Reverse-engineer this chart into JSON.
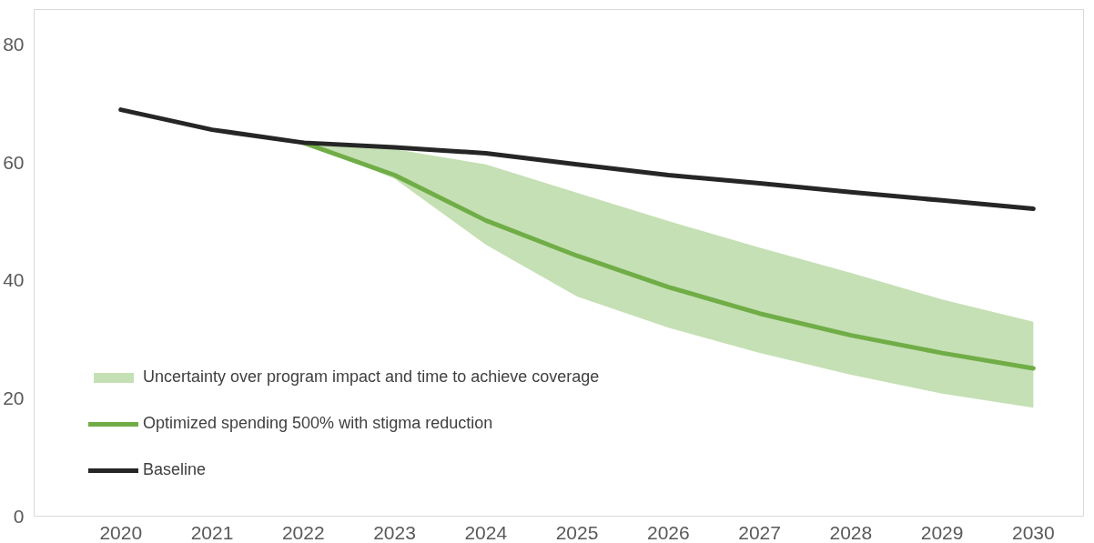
{
  "chart_data": {
    "type": "line",
    "categories": [
      "2020",
      "2021",
      "2022",
      "2023",
      "2024",
      "2025",
      "2026",
      "2027",
      "2028",
      "2029",
      "2030"
    ],
    "series": [
      {
        "name": "Uncertainty over program impact and time to achieve coverage",
        "type": "area",
        "color": "#c5e0b4",
        "values": [
          null,
          null,
          null,
          null,
          null,
          null,
          null,
          null,
          null,
          null,
          null
        ]
      },
      {
        "name": "Optimized spending 500% with stigma reduction",
        "color": "#70ad47",
        "values": [
          null,
          null,
          63.4,
          57.9,
          50.2,
          44.2,
          38.9,
          34.4,
          30.7,
          27.7,
          25.1
        ],
        "upper": [
          null,
          null,
          63.4,
          62.3,
          59.7,
          54.9,
          50.1,
          45.6,
          41.3,
          36.8,
          33.0
        ],
        "lower": [
          null,
          null,
          63.4,
          57.3,
          46.1,
          37.3,
          32.0,
          27.7,
          24.0,
          20.8,
          18.4
        ]
      },
      {
        "name": "Baseline",
        "color": "#262626",
        "values": [
          69.0,
          65.6,
          63.4,
          62.6,
          61.6,
          59.7,
          57.9,
          56.5,
          55.0,
          53.6,
          52.2
        ]
      }
    ],
    "ylim": [
      0,
      86
    ],
    "yticks": [
      0,
      20,
      40,
      60,
      80
    ],
    "grid": false,
    "legend": "left",
    "line_style": "solid",
    "marker": "none"
  }
}
